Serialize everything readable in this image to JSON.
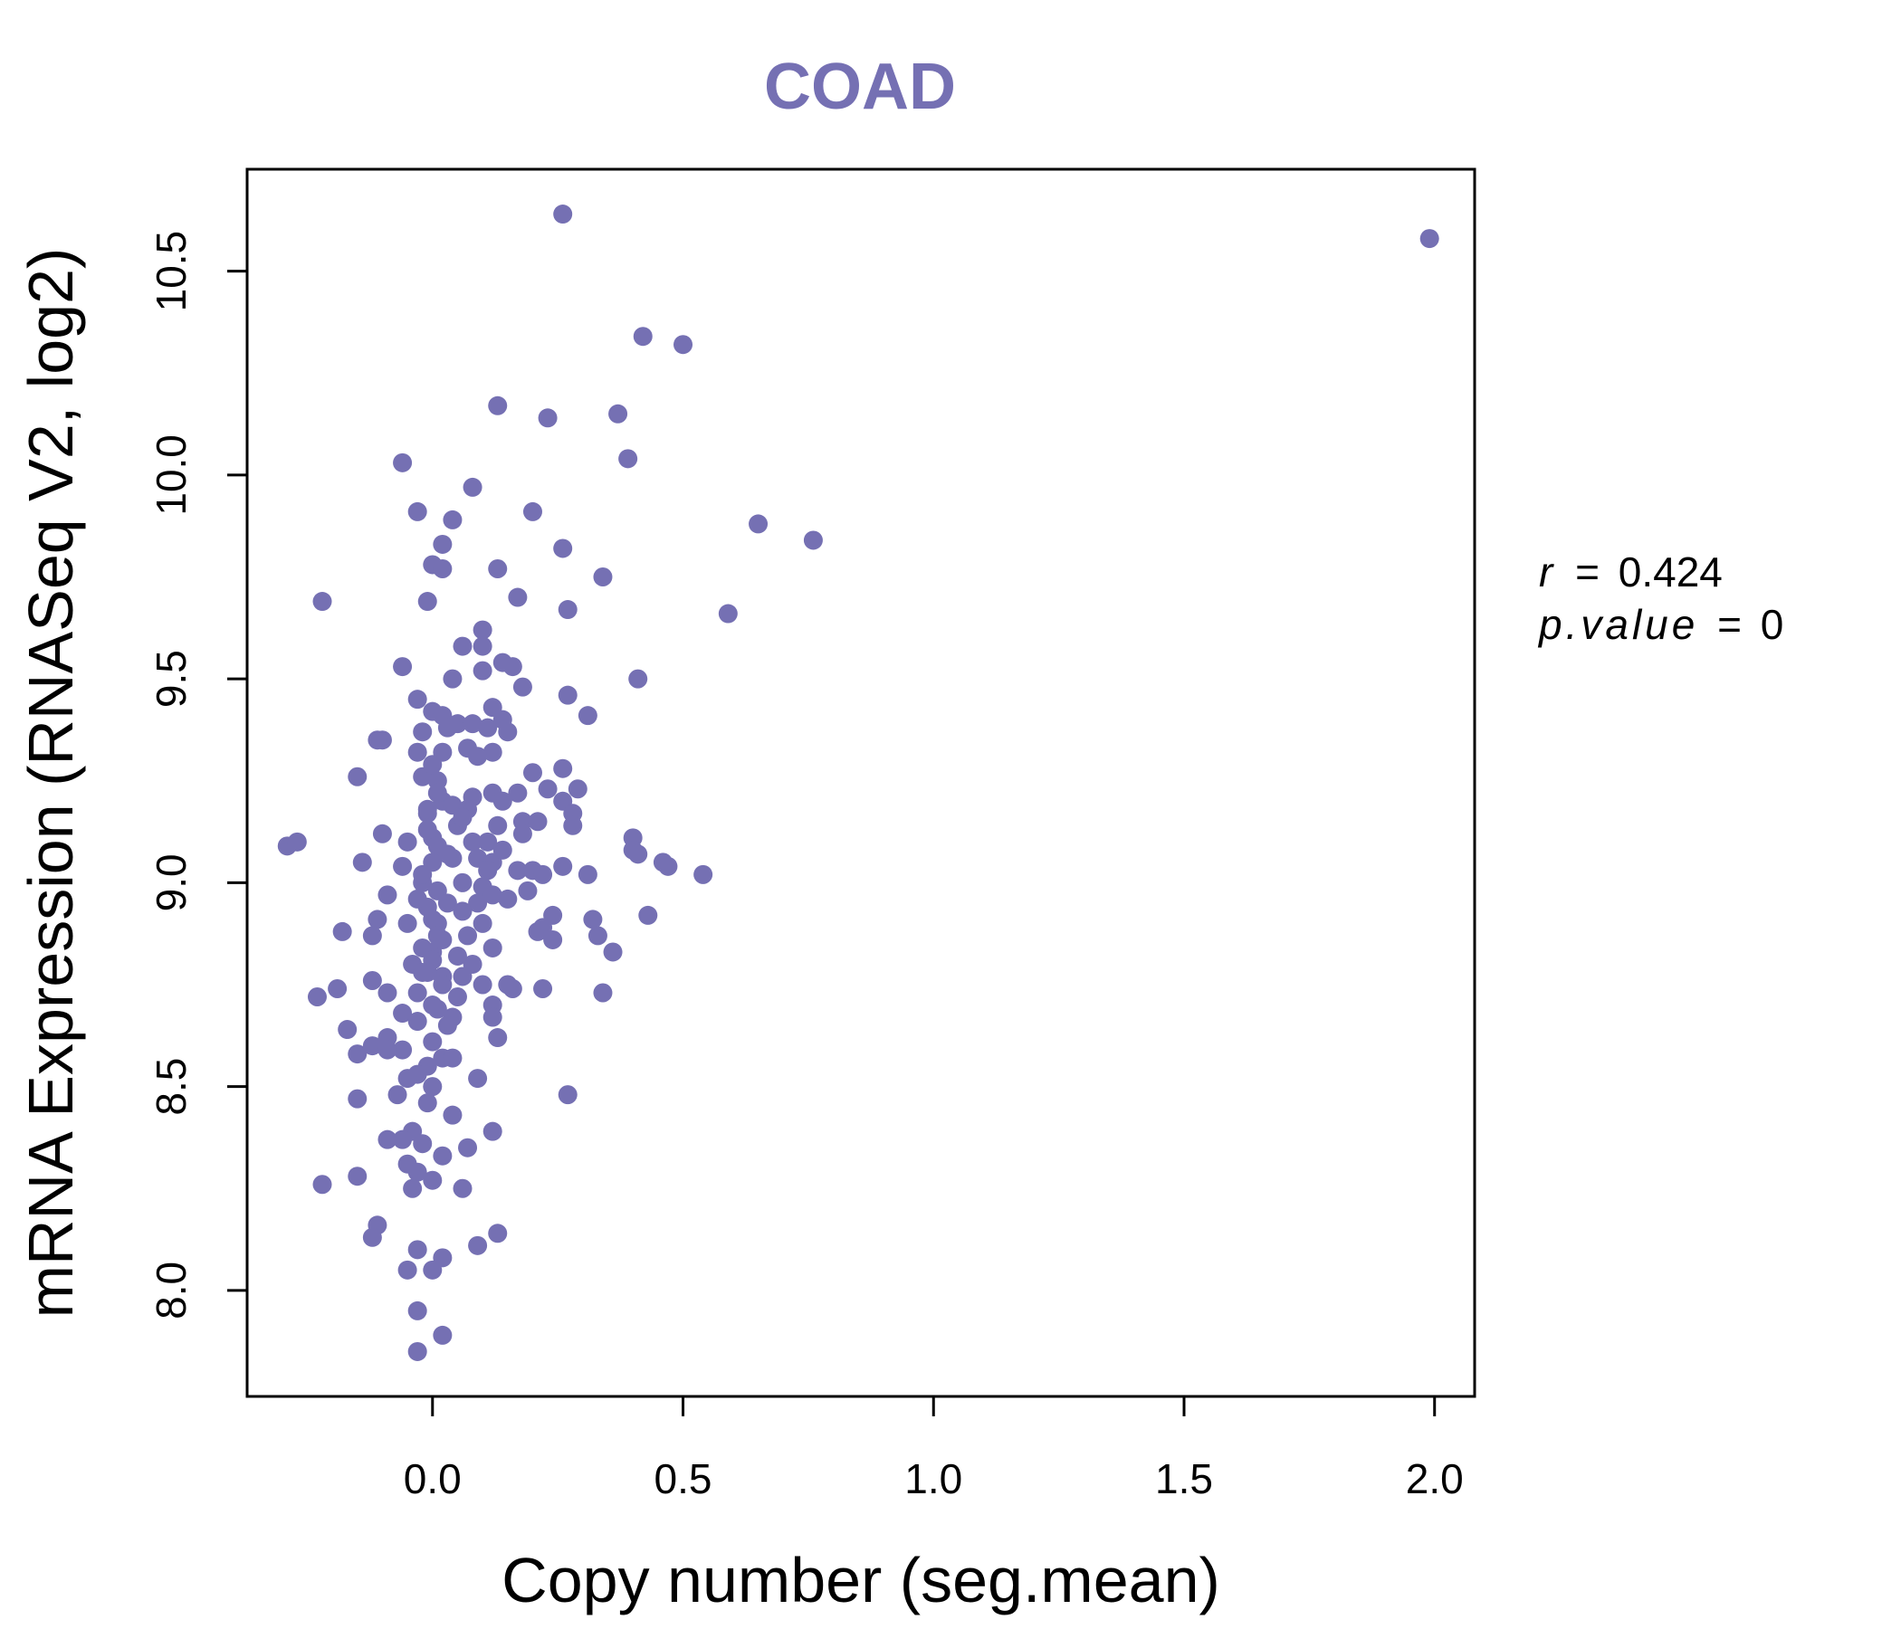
{
  "colors": {
    "point": "#7570b3",
    "axis": "#000000",
    "background": "#ffffff"
  },
  "stats": {
    "r_label": "r",
    "r_value": "0.424",
    "p_label": "p.value",
    "p_value": "0",
    "equals": "="
  },
  "chart_data": {
    "type": "scatter",
    "title": "COAD",
    "xlabel": "Copy number (seg.mean)",
    "ylabel": "mRNA Expression (RNASeq V2, log2)",
    "xlim": [
      -0.37,
      2.08
    ],
    "ylim": [
      7.74,
      10.75
    ],
    "x_ticks": [
      0.0,
      0.5,
      1.0,
      1.5,
      2.0
    ],
    "x_tick_labels": [
      "0.0",
      "0.5",
      "1.0",
      "1.5",
      "2.0"
    ],
    "y_ticks": [
      8.0,
      8.5,
      9.0,
      9.5,
      10.0,
      10.5
    ],
    "y_tick_labels": [
      "8.0",
      "8.5",
      "9.0",
      "9.5",
      "10.0",
      "10.5"
    ],
    "points": [
      [
        0.26,
        10.64
      ],
      [
        1.99,
        10.58
      ],
      [
        0.42,
        10.34
      ],
      [
        0.5,
        10.32
      ],
      [
        0.13,
        10.17
      ],
      [
        0.23,
        10.14
      ],
      [
        0.37,
        10.15
      ],
      [
        0.39,
        10.04
      ],
      [
        -0.06,
        10.03
      ],
      [
        0.08,
        9.97
      ],
      [
        -0.03,
        9.91
      ],
      [
        0.04,
        9.89
      ],
      [
        0.02,
        9.83
      ],
      [
        0.2,
        9.91
      ],
      [
        0.26,
        9.82
      ],
      [
        0.65,
        9.88
      ],
      [
        0.76,
        9.84
      ],
      [
        0.0,
        9.78
      ],
      [
        0.02,
        9.77
      ],
      [
        0.13,
        9.77
      ],
      [
        0.34,
        9.75
      ],
      [
        0.17,
        9.7
      ],
      [
        -0.22,
        9.69
      ],
      [
        -0.01,
        9.69
      ],
      [
        0.27,
        9.67
      ],
      [
        0.59,
        9.66
      ],
      [
        0.1,
        9.62
      ],
      [
        0.06,
        9.58
      ],
      [
        0.1,
        9.58
      ],
      [
        -0.06,
        9.53
      ],
      [
        0.1,
        9.52
      ],
      [
        0.14,
        9.54
      ],
      [
        0.04,
        9.5
      ],
      [
        0.16,
        9.53
      ],
      [
        0.41,
        9.5
      ],
      [
        0.18,
        9.48
      ],
      [
        0.27,
        9.46
      ],
      [
        -0.03,
        9.45
      ],
      [
        0.0,
        9.42
      ],
      [
        0.02,
        9.41
      ],
      [
        0.12,
        9.43
      ],
      [
        0.31,
        9.41
      ],
      [
        0.05,
        9.39
      ],
      [
        0.08,
        9.39
      ],
      [
        0.14,
        9.4
      ],
      [
        -0.02,
        9.37
      ],
      [
        0.03,
        9.38
      ],
      [
        0.11,
        9.38
      ],
      [
        0.15,
        9.37
      ],
      [
        -0.1,
        9.35
      ],
      [
        -0.11,
        9.35
      ],
      [
        0.07,
        9.33
      ],
      [
        0.12,
        9.32
      ],
      [
        -0.03,
        9.32
      ],
      [
        0.02,
        9.32
      ],
      [
        0.09,
        9.31
      ],
      [
        0.2,
        9.27
      ],
      [
        0.26,
        9.28
      ],
      [
        -0.15,
        9.26
      ],
      [
        0.01,
        9.25
      ],
      [
        0.29,
        9.23
      ],
      [
        0.23,
        9.23
      ],
      [
        0.12,
        9.22
      ],
      [
        0.17,
        9.22
      ],
      [
        0.08,
        9.21
      ],
      [
        0.26,
        9.2
      ],
      [
        0.02,
        9.2
      ],
      [
        0.14,
        9.2
      ],
      [
        0.04,
        9.19
      ],
      [
        0.07,
        9.18
      ],
      [
        0.28,
        9.17
      ],
      [
        -0.01,
        9.17
      ],
      [
        0.18,
        9.15
      ],
      [
        0.21,
        9.15
      ],
      [
        0.13,
        9.14
      ],
      [
        0.28,
        9.14
      ],
      [
        0.05,
        9.14
      ],
      [
        -0.1,
        9.12
      ],
      [
        0.18,
        9.12
      ],
      [
        0.4,
        9.11
      ],
      [
        0.0,
        9.11
      ],
      [
        -0.05,
        9.1
      ],
      [
        0.11,
        9.1
      ],
      [
        -0.29,
        9.09
      ],
      [
        -0.27,
        9.1
      ],
      [
        0.4,
        9.08
      ],
      [
        0.41,
        9.07
      ],
      [
        0.09,
        9.06
      ],
      [
        0.04,
        9.06
      ],
      [
        0.12,
        9.05
      ],
      [
        -0.14,
        9.05
      ],
      [
        0.46,
        9.05
      ],
      [
        0.47,
        9.04
      ],
      [
        0.26,
        9.04
      ],
      [
        -0.06,
        9.04
      ],
      [
        0.11,
        9.03
      ],
      [
        0.17,
        9.03
      ],
      [
        0.2,
        9.03
      ],
      [
        0.22,
        9.02
      ],
      [
        0.31,
        9.02
      ],
      [
        0.54,
        9.02
      ],
      [
        0.06,
        9.0
      ],
      [
        -0.02,
        9.0
      ],
      [
        0.1,
        8.99
      ],
      [
        0.19,
        8.98
      ],
      [
        0.12,
        8.97
      ],
      [
        -0.09,
        8.97
      ],
      [
        0.15,
        8.96
      ],
      [
        0.09,
        8.95
      ],
      [
        0.03,
        8.95
      ],
      [
        0.06,
        8.93
      ],
      [
        0.24,
        8.92
      ],
      [
        0.43,
        8.92
      ],
      [
        -0.11,
        8.91
      ],
      [
        0.32,
        8.91
      ],
      [
        0.01,
        8.9
      ],
      [
        -0.05,
        8.9
      ],
      [
        0.22,
        8.89
      ],
      [
        0.21,
        8.88
      ],
      [
        -0.18,
        8.88
      ],
      [
        -0.12,
        8.87
      ],
      [
        0.33,
        8.87
      ],
      [
        0.07,
        8.87
      ],
      [
        0.24,
        8.86
      ],
      [
        0.12,
        8.84
      ],
      [
        0.0,
        8.83
      ],
      [
        0.36,
        8.83
      ],
      [
        -0.04,
        8.8
      ],
      [
        0.08,
        8.8
      ],
      [
        0.06,
        8.77
      ],
      [
        0.02,
        8.77
      ],
      [
        0.15,
        8.75
      ],
      [
        0.1,
        8.75
      ],
      [
        -0.12,
        8.76
      ],
      [
        0.16,
        8.74
      ],
      [
        0.22,
        8.74
      ],
      [
        -0.19,
        8.74
      ],
      [
        -0.09,
        8.73
      ],
      [
        0.34,
        8.73
      ],
      [
        -0.23,
        8.72
      ],
      [
        0.05,
        8.72
      ],
      [
        0.12,
        8.7
      ],
      [
        -0.06,
        8.68
      ],
      [
        0.12,
        8.67
      ],
      [
        0.04,
        8.67
      ],
      [
        -0.03,
        8.66
      ],
      [
        0.03,
        8.65
      ],
      [
        -0.17,
        8.64
      ],
      [
        0.13,
        8.62
      ],
      [
        -0.09,
        8.62
      ],
      [
        0.0,
        8.61
      ],
      [
        -0.12,
        8.6
      ],
      [
        -0.06,
        8.59
      ],
      [
        -0.09,
        8.59
      ],
      [
        -0.15,
        8.58
      ],
      [
        0.02,
        8.57
      ],
      [
        0.04,
        8.57
      ],
      [
        -0.01,
        8.55
      ],
      [
        -0.03,
        8.53
      ],
      [
        -0.05,
        8.52
      ],
      [
        0.09,
        8.52
      ],
      [
        0.0,
        8.5
      ],
      [
        0.27,
        8.48
      ],
      [
        -0.07,
        8.48
      ],
      [
        -0.15,
        8.47
      ],
      [
        -0.01,
        8.46
      ],
      [
        0.04,
        8.43
      ],
      [
        0.12,
        8.39
      ],
      [
        -0.04,
        8.39
      ],
      [
        -0.06,
        8.37
      ],
      [
        -0.02,
        8.36
      ],
      [
        -0.09,
        8.37
      ],
      [
        0.07,
        8.35
      ],
      [
        0.02,
        8.33
      ],
      [
        -0.05,
        8.31
      ],
      [
        -0.03,
        8.29
      ],
      [
        -0.15,
        8.28
      ],
      [
        0.0,
        8.27
      ],
      [
        -0.22,
        8.26
      ],
      [
        0.06,
        8.25
      ],
      [
        -0.04,
        8.25
      ],
      [
        -0.11,
        8.16
      ],
      [
        0.13,
        8.14
      ],
      [
        -0.12,
        8.13
      ],
      [
        0.09,
        8.11
      ],
      [
        -0.03,
        8.1
      ],
      [
        0.02,
        8.08
      ],
      [
        -0.05,
        8.05
      ],
      [
        0.0,
        8.05
      ],
      [
        -0.03,
        7.95
      ],
      [
        0.02,
        7.89
      ],
      [
        -0.03,
        7.85
      ],
      [
        -0.01,
        9.13
      ],
      [
        0.01,
        9.09
      ],
      [
        0.0,
        9.05
      ],
      [
        -0.02,
        9.02
      ],
      [
        0.01,
        8.98
      ],
      [
        -0.01,
        8.94
      ],
      [
        0.0,
        8.91
      ],
      [
        0.01,
        8.87
      ],
      [
        -0.02,
        8.84
      ],
      [
        0.0,
        8.81
      ],
      [
        -0.01,
        8.78
      ],
      [
        0.02,
        8.75
      ],
      [
        -0.03,
        8.73
      ],
      [
        0.0,
        8.7
      ],
      [
        0.01,
        9.22
      ],
      [
        -0.02,
        9.26
      ],
      [
        0.0,
        9.29
      ],
      [
        -0.01,
        9.18
      ],
      [
        0.03,
        9.07
      ],
      [
        -0.03,
        8.96
      ],
      [
        0.02,
        8.86
      ],
      [
        -0.02,
        8.78
      ],
      [
        0.01,
        8.69
      ],
      [
        0.08,
        9.1
      ],
      [
        0.06,
        9.16
      ],
      [
        0.1,
        8.9
      ],
      [
        0.14,
        9.08
      ],
      [
        0.05,
        8.82
      ]
    ]
  }
}
